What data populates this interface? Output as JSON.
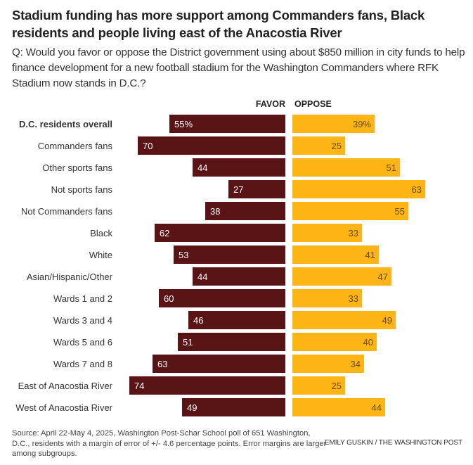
{
  "title": "Stadium funding has more support among Commanders fans, Black residents and people living east of the Anacostia River",
  "subtitle": "Q: Would you favor or oppose the District government using about $850 million in city funds to help finance development for a new football stadium for the Washington Commanders where RFK Stadium now stands in D.C.?",
  "footer": {
    "source": "Source: April 22-May 4, 2025, Washington Post-Schar School poll of 651 Washington, D.C., residents with a margin of error of +/- 4.6 percentage points. Error margins are larger among subgroups.",
    "credit": "EMILY GUSKIN / THE WASHINGTON POST"
  },
  "colors": {
    "favor": "#5a1416",
    "oppose": "#fdb515",
    "favor_label": "#ffffff",
    "oppose_label": "#6b4a10"
  },
  "chart_data": {
    "type": "bar",
    "orientation": "diverging-horizontal",
    "title": "Stadium funding has more support among Commanders fans, Black residents and people living east of the Anacostia River",
    "xlabel": "",
    "ylabel": "",
    "unit": "percent",
    "xlim": [
      0,
      100
    ],
    "grid": false,
    "legend": "top-center",
    "categories": [
      "D.C. residents overall",
      "Commanders fans",
      "Other sports fans",
      "Not sports fans",
      "Not Commanders fans",
      "Black",
      "White",
      "Asian/Hispanic/Other",
      "Wards 1 and 2",
      "Wards 3 and 4",
      "Wards 5 and 6",
      "Wards 7 and 8",
      "East of Anacostia River",
      "West of Anacostia River"
    ],
    "bold_categories": [
      "D.C. residents overall"
    ],
    "series": [
      {
        "name": "FAVOR",
        "values": [
          55,
          70,
          44,
          27,
          38,
          62,
          53,
          44,
          60,
          46,
          51,
          63,
          74,
          49
        ]
      },
      {
        "name": "OPPOSE",
        "values": [
          39,
          25,
          51,
          63,
          55,
          33,
          41,
          47,
          33,
          49,
          40,
          34,
          25,
          44
        ]
      }
    ],
    "first_row_suffix": "%"
  }
}
